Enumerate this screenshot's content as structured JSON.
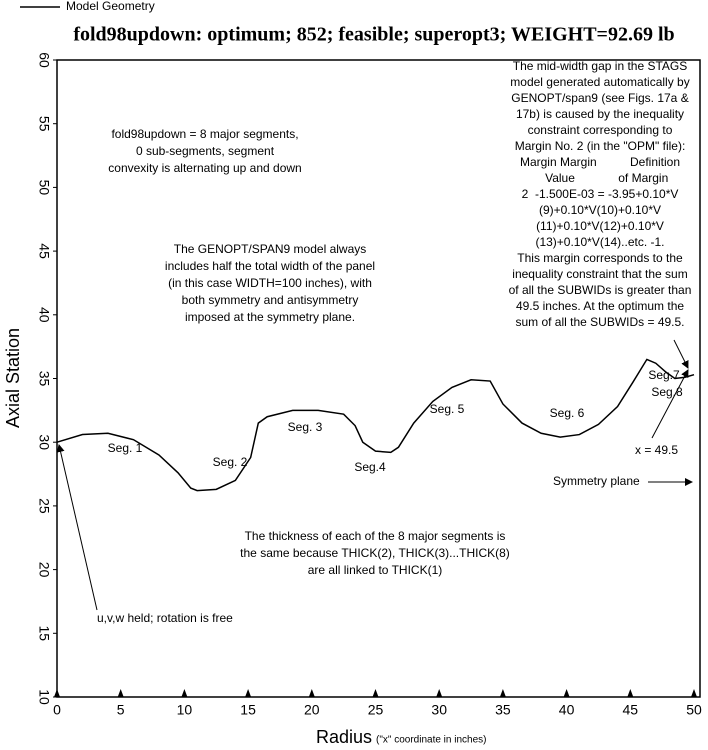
{
  "chart_data": {
    "type": "line",
    "title": "fold98updown: optimum; 852; feasible; superopt3; WEIGHT=92.69 lb",
    "xlabel": "Radius",
    "xlabel_note": "(\"x\" coordinate in inches)",
    "ylabel": "Axial Station",
    "xlim": [
      0,
      50
    ],
    "ylim": [
      10,
      60
    ],
    "xticks": [
      0,
      5,
      10,
      15,
      20,
      25,
      30,
      35,
      40,
      45,
      50
    ],
    "yticks": [
      10,
      15,
      20,
      25,
      30,
      35,
      40,
      45,
      50,
      55,
      60
    ],
    "series": [
      {
        "name": "Model Geometry",
        "color": "#000000",
        "x": [
          0,
          2,
          4,
          6,
          8,
          9.5,
          10.5,
          11,
          12.5,
          14,
          15.2,
          15.8,
          16.5,
          18.5,
          20.5,
          22.5,
          23.4,
          24,
          25,
          26.2,
          26.8,
          28,
          29.5,
          31,
          32.5,
          34,
          35,
          36.5,
          38,
          39.5,
          41,
          42.5,
          44,
          45.2,
          46.3,
          47,
          47.8,
          48.5,
          49.3,
          50
        ],
        "values": [
          30,
          30.6,
          30.7,
          30.2,
          29,
          27.6,
          26.4,
          26.2,
          26.3,
          27,
          28.8,
          31.5,
          32,
          32.5,
          32.5,
          32.2,
          31.3,
          30,
          29.3,
          29.2,
          29.6,
          31.5,
          33.2,
          34.3,
          34.9,
          34.8,
          33,
          31.5,
          30.7,
          30.4,
          30.6,
          31.4,
          32.8,
          34.7,
          36.5,
          36.2,
          35.5,
          35,
          35.1,
          35.3
        ]
      }
    ],
    "annotations": [
      [
        "fold98updown = 8 major segments,",
        "0 sub-segments, segment",
        "convexity is alternating up and down"
      ],
      [
        "The GENOPT/SPAN9 model always",
        "includes half the total width of the panel",
        "(in this case WIDTH=100 inches), with",
        "both symmetry and antisymmetry",
        "imposed at the symmetry plane."
      ],
      [
        "The mid-width gap in the STAGS",
        "model generated automatically by",
        "GENOPT/span9 (see Figs. 17a &",
        "17b) is caused by the inequality",
        "constraint corresponding to",
        "Margin No. 2 (in the \"OPM\" file):",
        "Margin Margin          Definition",
        "    Value             of Margin",
        "2  -1.500E-03 = -3.95+0.10*V",
        "(9)+0.10*V(10)+0.10*V",
        "(11)+0.10*V(12)+0.10*V",
        "(13)+0.10*V(14)..etc. -1.",
        "This margin corresponds to the",
        "inequality constraint that the sum",
        "of all the SUBWIDs is greater than",
        "49.5 inches. At the optimum the",
        "sum of all the SUBWIDs = 49.5."
      ],
      [
        "The thickness of each of the 8 major segments is",
        "the same because THICK(2), THICK(3)...THICK(8)",
        "are all linked to THICK(1)"
      ],
      [
        "u,v,w held; rotation is free"
      ],
      [
        "Symmetry plane"
      ],
      [
        "x = 49.5"
      ],
      [
        "Seg. 1"
      ],
      [
        "Seg. 2"
      ],
      [
        "Seg. 3"
      ],
      [
        "Seg.4"
      ],
      [
        "Seg. 5"
      ],
      [
        "Seg. 6"
      ],
      [
        "Seg.7"
      ],
      [
        "Seg.8"
      ]
    ]
  }
}
